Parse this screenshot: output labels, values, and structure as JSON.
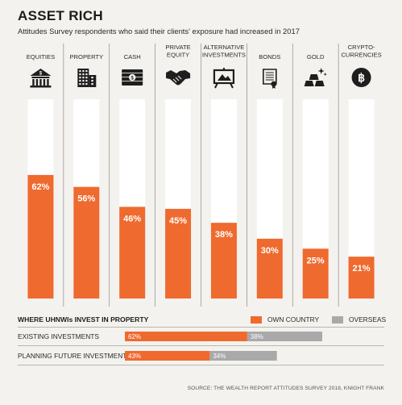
{
  "title": "ASSET RICH",
  "subtitle": "Attitudes Survey respondents who said their clients' exposure had increased in 2017",
  "colors": {
    "orange": "#ef6a2f",
    "grey": "#a9a9a9",
    "bar_bg": "#ffffff",
    "icon": "#1e1e1e"
  },
  "chart_data": [
    {
      "type": "bar",
      "categories": [
        [
          "EQUITIES"
        ],
        [
          "PROPERTY"
        ],
        [
          "CASH"
        ],
        [
          "PRIVATE",
          "EQUITY"
        ],
        [
          "ALTERNATIVE",
          "INVESTMENTS"
        ],
        [
          "BONDS"
        ],
        [
          "GOLD"
        ],
        [
          "CRYPTO-",
          "CURRENCIES"
        ]
      ],
      "icons": [
        "bank-icon",
        "building-icon",
        "cash-icon",
        "handshake-icon",
        "easel-icon",
        "scroll-icon",
        "gold-bars-icon",
        "bitcoin-icon"
      ],
      "values": [
        62,
        56,
        46,
        45,
        38,
        30,
        25,
        21
      ],
      "value_labels": [
        "62%",
        "56%",
        "46%",
        "45%",
        "38%",
        "30%",
        "25%",
        "21%"
      ],
      "ylim": [
        0,
        100
      ]
    },
    {
      "type": "bar",
      "orientation": "horizontal",
      "stacked": true,
      "title": "WHERE UHNWIs INVEST IN PROPERTY",
      "categories": [
        "EXISTING INVESTMENTS",
        "PLANNING FUTURE INVESTMENTS"
      ],
      "series": [
        {
          "name": "OWN COUNTRY",
          "values": [
            62,
            43
          ],
          "labels": [
            "62%",
            "43%"
          ]
        },
        {
          "name": "OVERSEAS",
          "values": [
            38,
            34
          ],
          "labels": [
            "38%",
            "34%"
          ]
        }
      ]
    }
  ],
  "source": "SOURCE: THE WEALTH REPORT ATTITUDES SURVEY 2018, KNIGHT FRANK"
}
